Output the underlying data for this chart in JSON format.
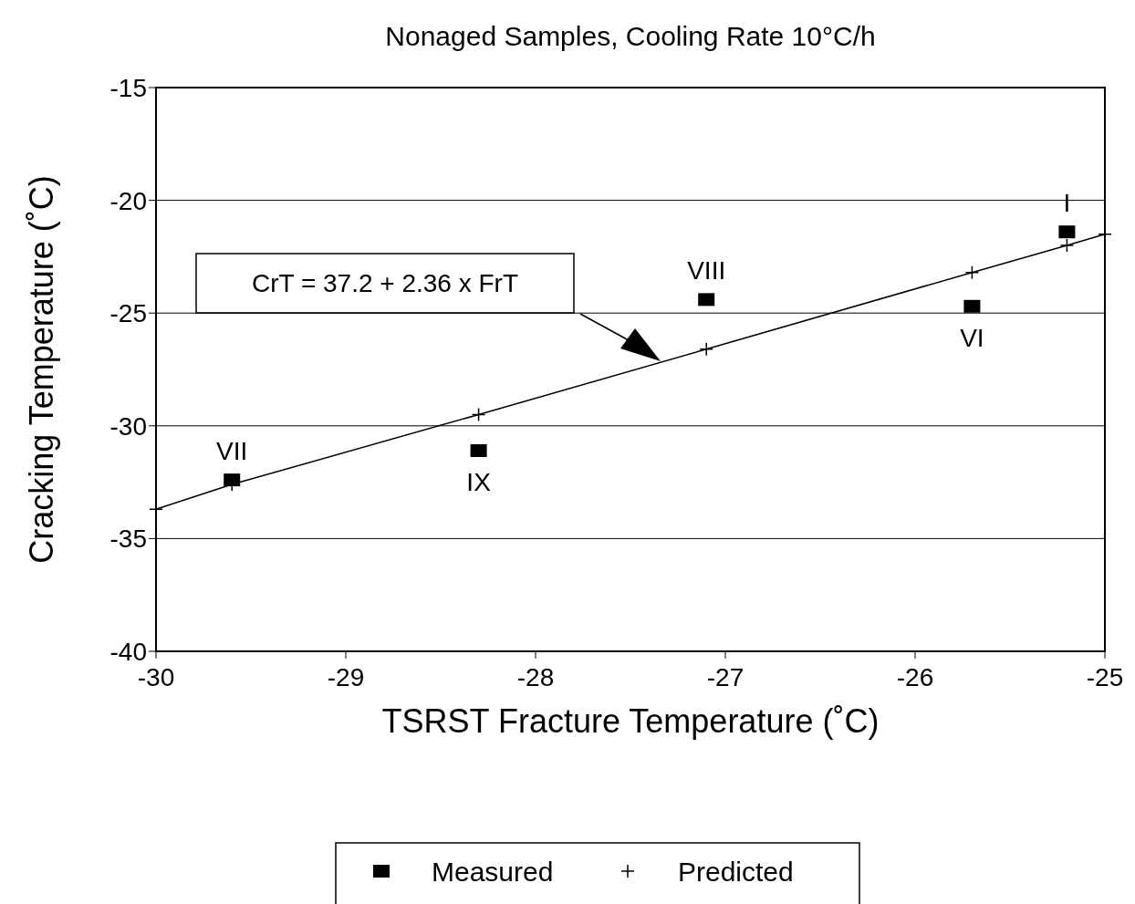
{
  "chart_data": {
    "type": "scatter",
    "title": "Nonaged Samples, Cooling Rate 10°C/h",
    "xlabel": "TSRST Fracture Temperature (˚C)",
    "ylabel": "Cracking Temperature (˚C)",
    "series": [
      {
        "name": "Measured",
        "marker": "square",
        "color": "#000000",
        "x": [
          -29.6,
          -28.3,
          -27.1,
          -25.7,
          -25.2
        ],
        "values": [
          -32.4,
          -31.1,
          -24.4,
          -24.7,
          -21.4
        ]
      },
      {
        "name": "Predicted",
        "type": "line",
        "marker": "cross",
        "color": "#000000",
        "x": [
          -30,
          -29.6,
          -28.3,
          -27.1,
          -25.7,
          -25.2,
          -25
        ],
        "values": [
          -33.7,
          -32.6,
          -29.5,
          -26.6,
          -23.2,
          -22.0,
          -21.5
        ]
      }
    ],
    "annotations": [
      {
        "text": "VII",
        "x": -29.6,
        "y": -32.4
      },
      {
        "text": "IX",
        "x": -28.3,
        "y": -31.1
      },
      {
        "text": "VIII",
        "x": -27.1,
        "y": -24.4
      },
      {
        "text": "VI",
        "x": -25.7,
        "y": -24.7
      },
      {
        "text": "I",
        "x": -25.2,
        "y": -21.4
      },
      "CrT = 37.2 + 2.36 x FrT"
    ],
    "xlim": [
      -30,
      -25
    ],
    "xticks": [
      -30,
      -29,
      -28,
      -27,
      -26,
      -25
    ],
    "ylim": [
      -40,
      -15
    ],
    "yticks": [
      -40,
      -35,
      -30,
      -25,
      -20,
      -15
    ],
    "grid": "y",
    "legend": "bottom"
  }
}
